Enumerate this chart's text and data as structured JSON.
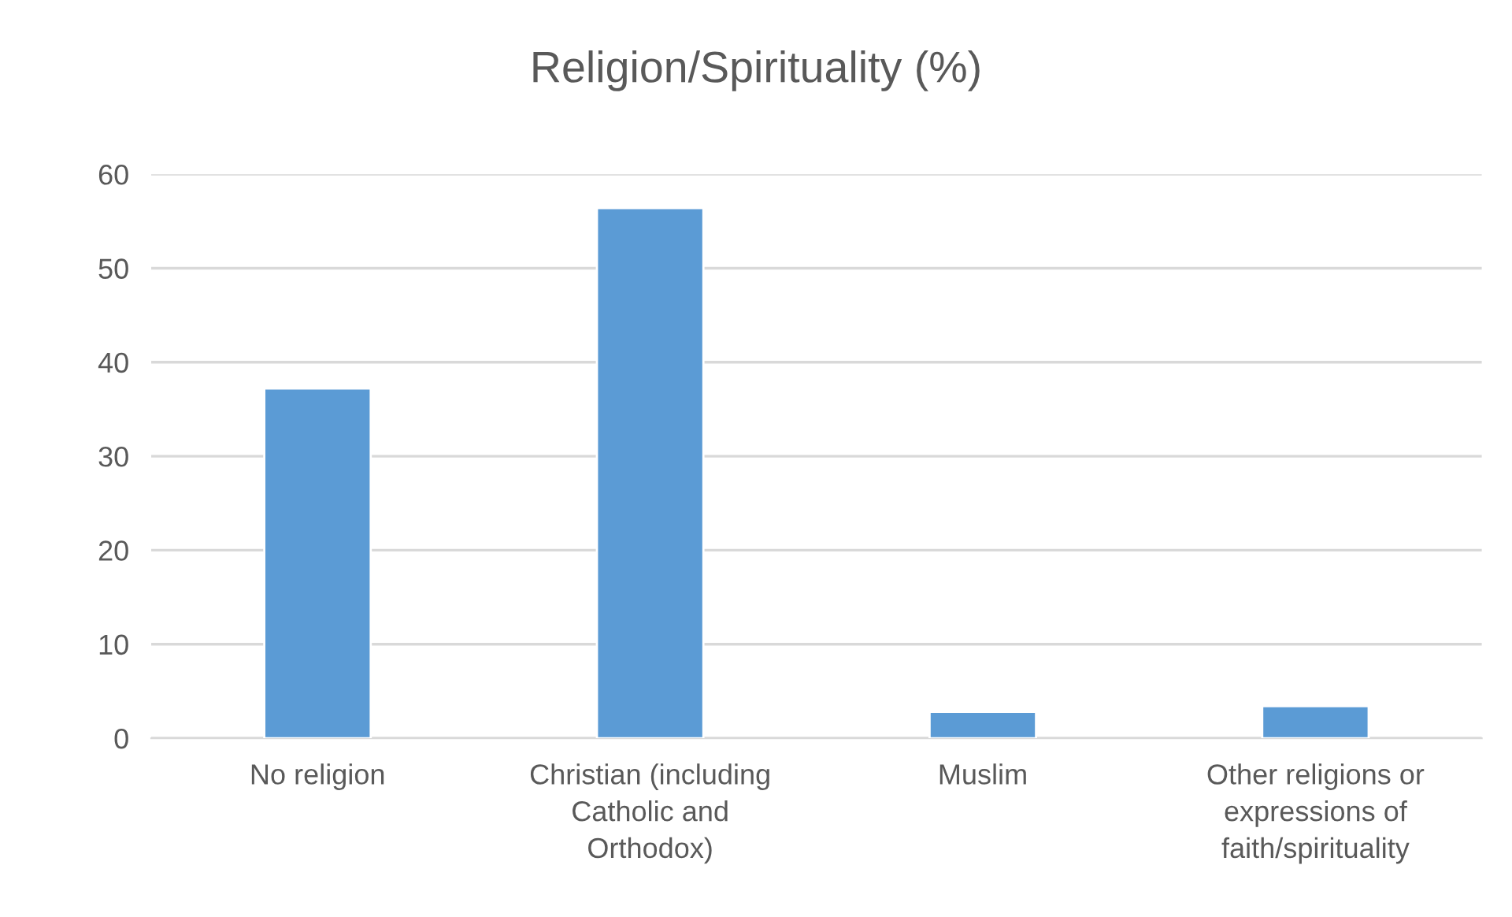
{
  "chart_data": {
    "type": "bar",
    "title": "Religion/Spirituality (%)",
    "categories": [
      "No religion",
      "Christian (including Catholic and Orthodox)",
      "Muslim",
      "Other religions or expressions of faith/spirituality"
    ],
    "values": [
      37.2,
      56.4,
      2.8,
      3.4
    ],
    "color": "#5b9bd5",
    "ylim": [
      0,
      60
    ],
    "yticks": [
      0,
      10,
      20,
      30,
      40,
      50,
      60
    ],
    "grid": "y",
    "legend": false
  }
}
